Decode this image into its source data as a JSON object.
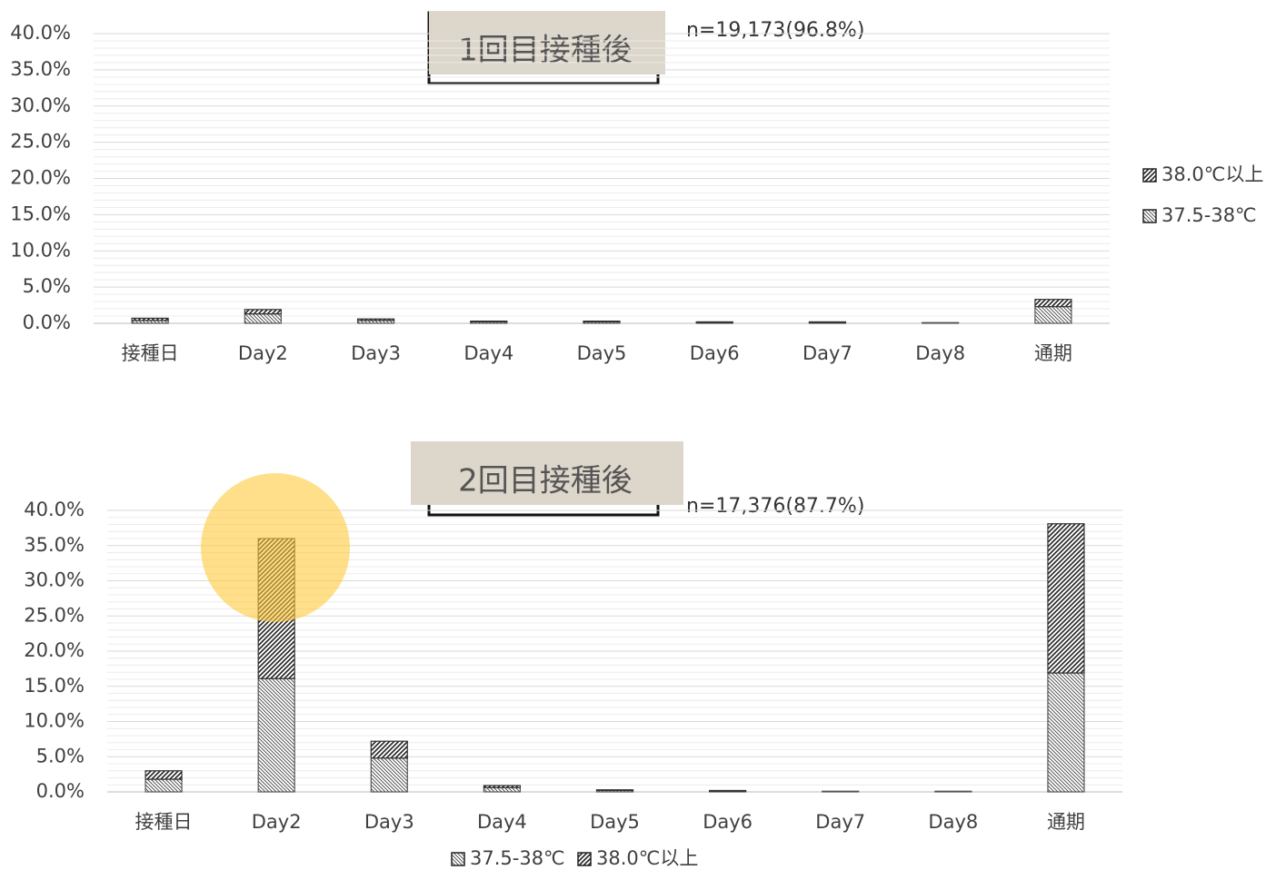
{
  "chart_data": [
    {
      "type": "bar",
      "stacked": true,
      "title": "1回目接種後",
      "annotation": "n=19,173(96.8%)",
      "categories": [
        "接種日",
        "Day2",
        "Day3",
        "Day4",
        "Day5",
        "Day6",
        "Day7",
        "Day8",
        "通期"
      ],
      "series": [
        {
          "name": "37.5-38℃",
          "color": "#555555",
          "values": [
            0.4,
            1.3,
            0.4,
            0.2,
            0.2,
            0.1,
            0.1,
            0.1,
            2.3
          ]
        },
        {
          "name": "38.0℃以上",
          "color": "#333333",
          "values": [
            0.3,
            0.6,
            0.2,
            0.1,
            0.1,
            0.1,
            0.1,
            0.0,
            1.0
          ]
        }
      ],
      "ylim": [
        0,
        40
      ],
      "yticks": [
        {
          "value": 0,
          "label": "0.0%"
        },
        {
          "value": 5,
          "label": "5.0%"
        },
        {
          "value": 10,
          "label": "10.0%"
        },
        {
          "value": 15,
          "label": "15.0%"
        },
        {
          "value": 20,
          "label": "20.0%"
        },
        {
          "value": 25,
          "label": "25.0%"
        },
        {
          "value": 30,
          "label": "30.0%"
        },
        {
          "value": 35,
          "label": "35.0%"
        },
        {
          "value": 40,
          "label": "40.0%"
        }
      ],
      "grid": true,
      "legend": "right"
    },
    {
      "type": "bar",
      "stacked": true,
      "title": "2回目接種後",
      "annotation": "n=17,376(87.7%)",
      "categories": [
        "接種日",
        "Day2",
        "Day3",
        "Day4",
        "Day5",
        "Day6",
        "Day7",
        "Day8",
        "通期"
      ],
      "series": [
        {
          "name": "37.5-38℃",
          "color": "#555555",
          "values": [
            1.8,
            16.1,
            4.8,
            0.6,
            0.2,
            0.1,
            0.1,
            0.1,
            16.9
          ]
        },
        {
          "name": "38.0℃以上",
          "color": "#333333",
          "values": [
            1.2,
            19.9,
            2.4,
            0.3,
            0.1,
            0.1,
            0.0,
            0.0,
            21.2
          ]
        }
      ],
      "ylim": [
        0,
        40
      ],
      "yticks": [
        {
          "value": 0,
          "label": "0.0%"
        },
        {
          "value": 5,
          "label": "5.0%"
        },
        {
          "value": 10,
          "label": "10.0%"
        },
        {
          "value": 15,
          "label": "15.0%"
        },
        {
          "value": 20,
          "label": "20.0%"
        },
        {
          "value": 25,
          "label": "25.0%"
        },
        {
          "value": 30,
          "label": "30.0%"
        },
        {
          "value": 35,
          "label": "35.0%"
        },
        {
          "value": 40,
          "label": "40.0%"
        }
      ],
      "grid": true,
      "legend": "bottom"
    }
  ]
}
